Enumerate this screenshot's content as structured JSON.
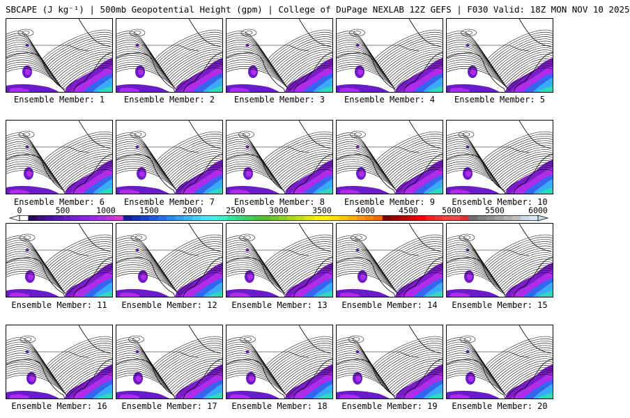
{
  "header": {
    "title": "SBCAPE (J kg⁻¹) | 500mb Geopotential Height (gpm) | College of DuPage NEXLAB 12Z GEFS | F030 Valid: 18Z MON NOV 10 2025"
  },
  "members": [
    {
      "label": "Ensemble Member: 1"
    },
    {
      "label": "Ensemble Member: 2"
    },
    {
      "label": "Ensemble Member: 3"
    },
    {
      "label": "Ensemble Member: 4"
    },
    {
      "label": "Ensemble Member: 5"
    },
    {
      "label": "Ensemble Member: 6"
    },
    {
      "label": "Ensemble Member: 7"
    },
    {
      "label": "Ensemble Member: 8"
    },
    {
      "label": "Ensemble Member: 9"
    },
    {
      "label": "Ensemble Member: 10"
    },
    {
      "label": "Ensemble Member: 11"
    },
    {
      "label": "Ensemble Member: 12"
    },
    {
      "label": "Ensemble Member: 13"
    },
    {
      "label": "Ensemble Member: 14"
    },
    {
      "label": "Ensemble Member: 15"
    },
    {
      "label": "Ensemble Member: 16"
    },
    {
      "label": "Ensemble Member: 17"
    },
    {
      "label": "Ensemble Member: 18"
    },
    {
      "label": "Ensemble Member: 19"
    },
    {
      "label": "Ensemble Member: 20"
    }
  ],
  "colorbar": {
    "labels": [
      "0",
      "500",
      "1000",
      "1500",
      "2000",
      "2500",
      "3000",
      "3500",
      "4000",
      "4500",
      "5000",
      "5500",
      "6000"
    ],
    "colors": [
      "#ffffff",
      "#2a0a5e",
      "#3c0f82",
      "#4b14a0",
      "#5a18b4",
      "#6a1cc8",
      "#7a20d8",
      "#8c24e4",
      "#9c28ee",
      "#b02ce8",
      "#c432dc",
      "#d63ad0",
      "#1020a0",
      "#1432b8",
      "#1846d0",
      "#1c5ae4",
      "#2070f0",
      "#2888f4",
      "#30a0f8",
      "#38b8fa",
      "#40d0fc",
      "#48e4fe",
      "#40f0e8",
      "#38f4c8",
      "#30e8a0",
      "#38dc80",
      "#40d060",
      "#48c444",
      "#58c030",
      "#70c828",
      "#8cd020",
      "#a8d818",
      "#c4e010",
      "#e0e808",
      "#f8f000",
      "#fff000",
      "#ffe000",
      "#ffc800",
      "#ffb000",
      "#ff9800",
      "#ff8000",
      "#ff6800",
      "#800000",
      "#a00000",
      "#c00000",
      "#e00000",
      "#ff0000",
      "#ff2020",
      "#ff3030",
      "#ff4040",
      "#f04848",
      "#e03030",
      "#707070",
      "#808080",
      "#909090",
      "#a0a0a0",
      "#b0b0b0",
      "#c0c0c0",
      "#c8d8e8",
      "#d8e8f4"
    ]
  }
}
